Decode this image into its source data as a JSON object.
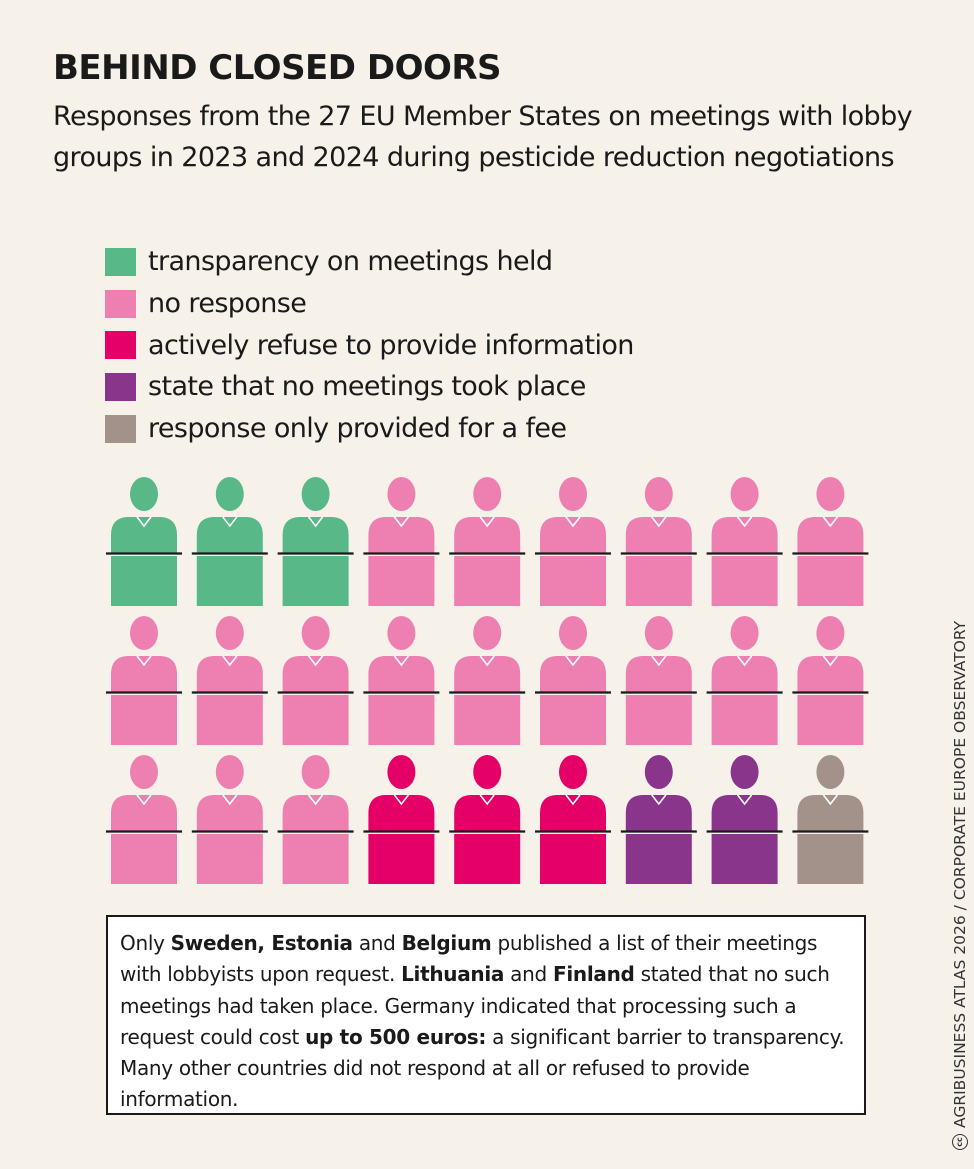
{
  "title": "BEHIND CLOSED DOORS",
  "subtitle_line1": "Responses from the 27 EU Member States on meetings with lobby",
  "subtitle_line2": "groups in 2023 and 2024 during pesticide reduction negotiations",
  "legend": [
    {
      "label": "transparency on meetings held",
      "color": "#58b887"
    },
    {
      "label": "no response",
      "color": "#ee80b1"
    },
    {
      "label": "actively refuse to provide information",
      "color": "#e40067"
    },
    {
      "label": "state that no meetings took place",
      "color": "#8a358c"
    },
    {
      "label": "response only provided for a fee",
      "color": "#a3928a"
    }
  ],
  "chart_data": {
    "type": "pictogram",
    "total": 27,
    "rows": 3,
    "columns": 9,
    "categories": [
      "transparency on meetings held",
      "no response",
      "actively refuse to provide information",
      "state that no meetings took place",
      "response only provided for a fee"
    ],
    "values": [
      3,
      18,
      3,
      2,
      1
    ]
  },
  "note": {
    "p1": "Only ",
    "b1": "Sweden, Estonia",
    "p2": " and ",
    "b2": "Belgium",
    "p3": " published a list of their meetings with lobbyists upon request. ",
    "b3": "Lithuania",
    "p4": " and ",
    "b4": "Finland",
    "p5": " stated that no such meetings had taken place. Germany indicated that processing such a request could cost ",
    "b5": "up to 500 euros:",
    "p6": " a significant barrier to transparency. Many other countries did not respond at all or refused to provide information."
  },
  "credit": "AGRIBUSINESS ATLAS 2026 / CORPORATE EUROPE OBSERVATORY",
  "credit_icon": "cc"
}
